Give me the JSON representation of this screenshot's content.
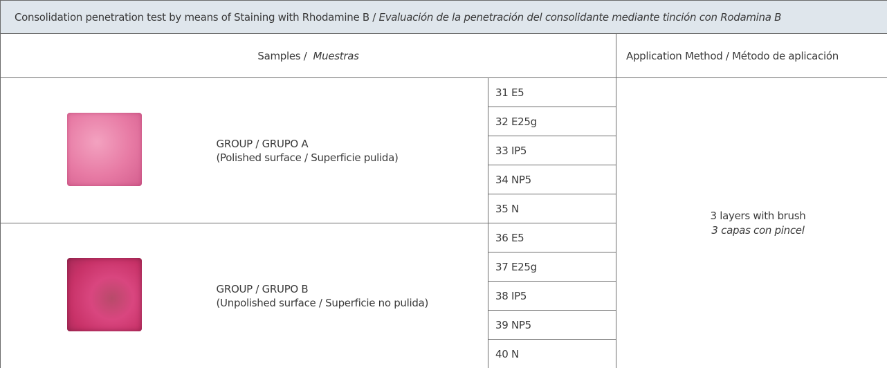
{
  "title": {
    "en": "Consolidation penetration test by means of Staining with Rhodamine B /",
    "es": "Evaluación de la penetración del consolidante mediante tinción con Rodamina B"
  },
  "header": {
    "samples_en": "Samples /",
    "samples_es": "Muestras",
    "method": "Application Method / Método de aplicación"
  },
  "groups": [
    {
      "name": "GROUP / GRUPO A",
      "surface": "(Polished surface / Superficie pulida)",
      "samples": [
        "31 E5",
        "32 E25g",
        "33 IP5",
        "34 NP5",
        "35 N"
      ]
    },
    {
      "name": "GROUP / GRUPO B",
      "surface": "(Unpolished surface / Superficie no pulida)",
      "samples": [
        "36 E5",
        "37 E25g",
        "38 IP5",
        "39 NP5",
        "40 N"
      ]
    }
  ],
  "method": {
    "en": "3 layers with brush",
    "es": "3 capas con pincel"
  }
}
